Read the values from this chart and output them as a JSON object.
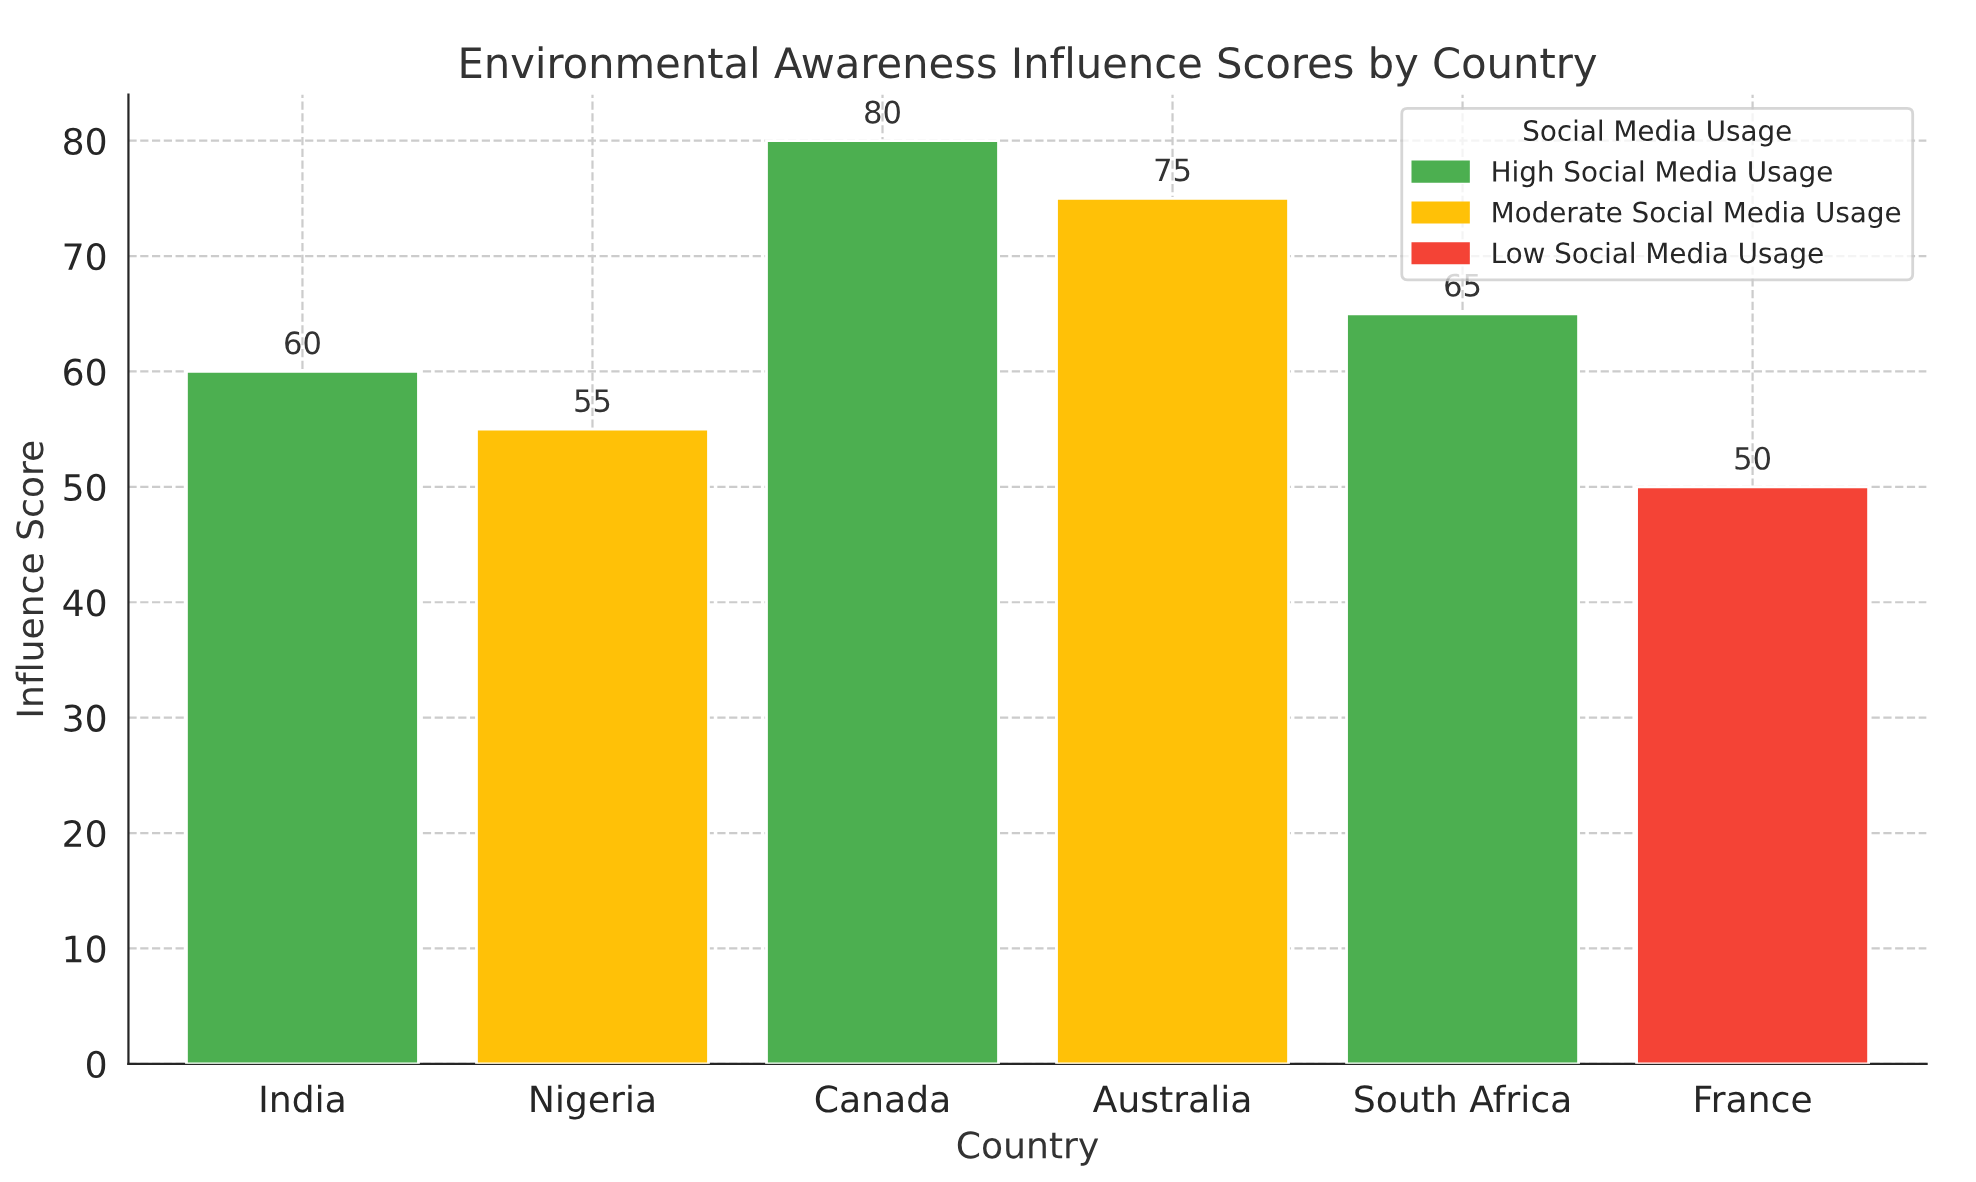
{
  "chart_data": {
    "type": "bar",
    "title": "Environmental Awareness Influence Scores by Country",
    "xlabel": "Country",
    "ylabel": "Influence Score",
    "categories": [
      "India",
      "Nigeria",
      "Canada",
      "Australia",
      "South Africa",
      "France"
    ],
    "series": [
      {
        "name": "High Social Media Usage",
        "color": "#4caf50",
        "values": [
          60,
          null,
          80,
          null,
          65,
          null
        ]
      },
      {
        "name": "Moderate Social Media Usage",
        "color": "#ffc107",
        "values": [
          null,
          55,
          null,
          75,
          null,
          null
        ]
      },
      {
        "name": "Low Social Media Usage",
        "color": "#f44336",
        "values": [
          null,
          null,
          null,
          null,
          null,
          50
        ]
      }
    ],
    "legend_title": "Social Media Usage",
    "legend": "top right",
    "data_labels": true,
    "grid": true,
    "ylim": [
      0,
      84
    ],
    "yticks": [
      0,
      10,
      20,
      30,
      40,
      50,
      60,
      70,
      80
    ]
  }
}
